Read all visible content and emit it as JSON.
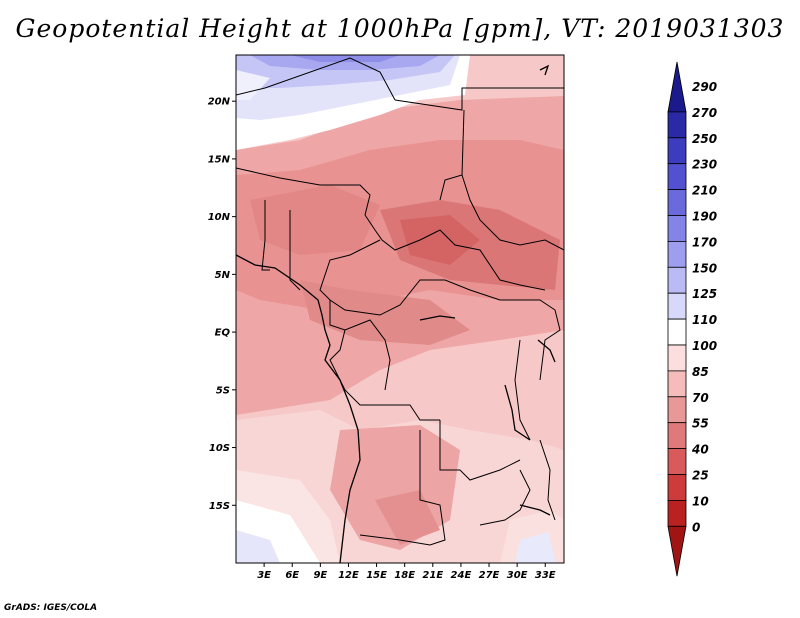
{
  "title": "Geopotential Height at 1000hPa [gpm], VT: 2019031303",
  "credit": "GrADS: IGES/COLA",
  "map": {
    "lon_range": [
      0,
      35
    ],
    "lat_range": [
      -20,
      24
    ],
    "lat_ticks": [
      {
        "lat": 20,
        "label": "20N"
      },
      {
        "lat": 15,
        "label": "15N"
      },
      {
        "lat": 10,
        "label": "10N"
      },
      {
        "lat": 5,
        "label": "5N"
      },
      {
        "lat": 0,
        "label": "EQ"
      },
      {
        "lat": -5,
        "label": "5S"
      },
      {
        "lat": -10,
        "label": "10S"
      },
      {
        "lat": -15,
        "label": "15S"
      }
    ],
    "lon_ticks": [
      {
        "lon": 3,
        "label": "3E"
      },
      {
        "lon": 6,
        "label": "6E"
      },
      {
        "lon": 9,
        "label": "9E"
      },
      {
        "lon": 12,
        "label": "12E"
      },
      {
        "lon": 15,
        "label": "15E"
      },
      {
        "lon": 18,
        "label": "18E"
      },
      {
        "lon": 21,
        "label": "21E"
      },
      {
        "lon": 24,
        "label": "24E"
      },
      {
        "lon": 27,
        "label": "27E"
      },
      {
        "lon": 30,
        "label": "30E"
      },
      {
        "lon": 33,
        "label": "33E"
      }
    ]
  },
  "colorbar": {
    "levels": [
      "290",
      "270",
      "250",
      "230",
      "210",
      "190",
      "170",
      "150",
      "125",
      "110",
      "100",
      "85",
      "70",
      "55",
      "40",
      "25",
      "10",
      "0"
    ],
    "colors": [
      "#1a1a8c",
      "#2a2aa6",
      "#3c3cbe",
      "#5252d0",
      "#6a6adc",
      "#8484e6",
      "#9e9eee",
      "#babaf4",
      "#d8d8fa",
      "#ffffff",
      "#fcdede",
      "#f6bcbc",
      "#e99898",
      "#e07a7a",
      "#d85a5a",
      "#cc3c3c",
      "#ba2222",
      "#a01414"
    ]
  }
}
